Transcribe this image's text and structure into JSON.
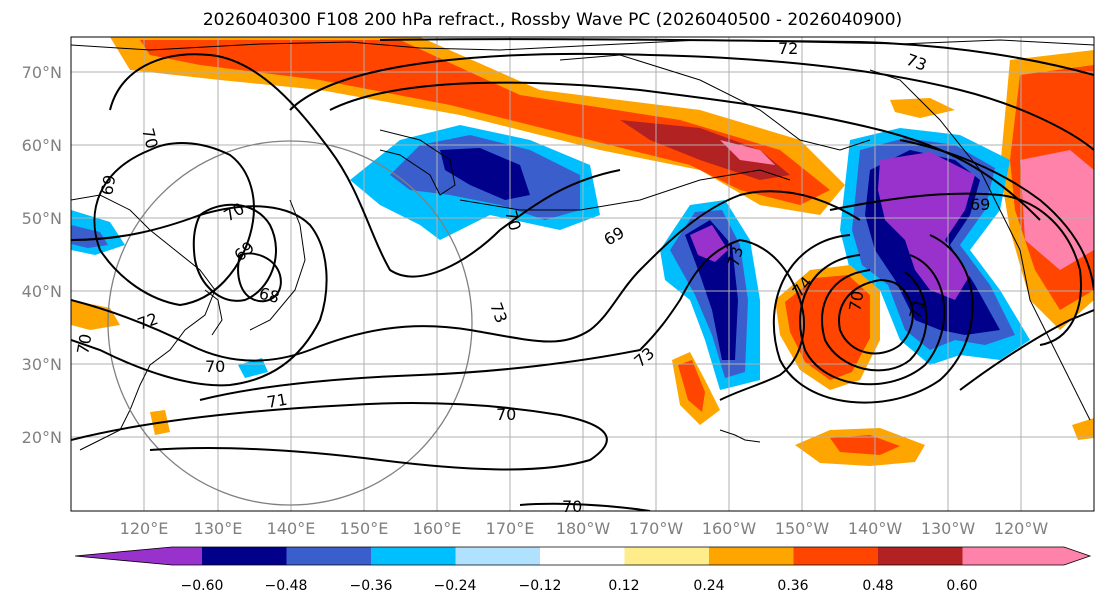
{
  "title": "2026040300 F108 200 hPa refract., Rossby Wave PC (2026040500 - 2026040900)",
  "lon_labels": [
    "120°E",
    "130°E",
    "140°E",
    "150°E",
    "160°E",
    "170°E",
    "180°W",
    "170°W",
    "160°W",
    "150°W",
    "140°W",
    "130°W",
    "120°W"
  ],
  "lat_labels": [
    "70°N",
    "60°N",
    "50°N",
    "40°N",
    "30°N",
    "20°N"
  ],
  "contour_labels": [
    "72",
    "73",
    "70",
    "69",
    "70",
    "69",
    "68",
    "72",
    "70",
    "70",
    "71",
    "70",
    "70",
    "73",
    "73",
    "69",
    "73",
    "74",
    "70",
    "71",
    "69",
    "70"
  ],
  "colorbar": {
    "ticks": [
      "−0.60",
      "−0.48",
      "−0.36",
      "−0.24",
      "−0.12",
      "0.12",
      "0.24",
      "0.36",
      "0.48",
      "0.60"
    ],
    "colors": [
      "#9932cc",
      "#00008b",
      "#3a5fcd",
      "#00bfff",
      "#b0e2ff",
      "#ffffff",
      "#ffec8b",
      "#ffa500",
      "#ff4500",
      "#b22222",
      "#ff82ab"
    ]
  }
}
